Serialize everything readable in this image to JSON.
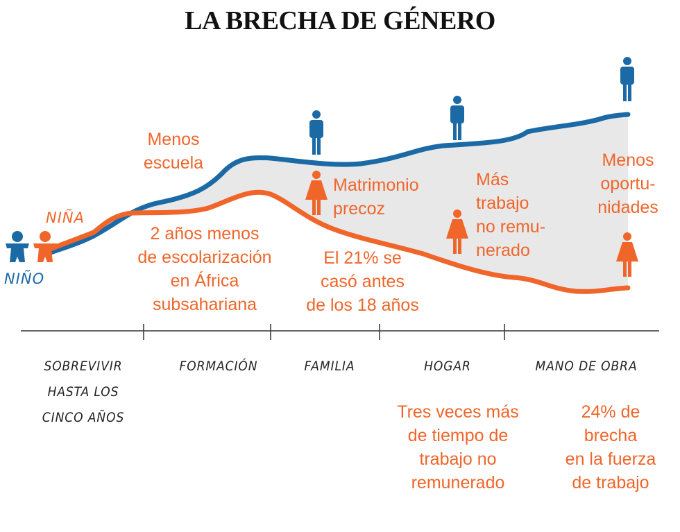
{
  "title": "LA BRECHA DE GÉNERO",
  "legend": {
    "girl": "NIÑA",
    "boy": "NIÑO"
  },
  "colors": {
    "boy": "#1b6aa6",
    "girl": "#f0652a",
    "gap": "#e8e8e8"
  },
  "annotations": {
    "less_school": "Menos\nescuela",
    "schooling": "2 años menos\nde escolarización\nen África\nsubsahariana",
    "child_marriage": "Matrimonio\nprecoz",
    "married_before_18": "El 21% se\ncasó antes\nde los 18 años",
    "unpaid_work": "Más\ntrabajo\nno remu-\nnerado",
    "fewer_opportunities": "Menos\noportu-\nnidades"
  },
  "stages": [
    "SOBREVIVIR\nHASTA LOS\nCINCO AÑOS",
    "FORMACIÓN",
    "FAMILIA",
    "HOGAR",
    "MANO DE OBRA"
  ],
  "stage_notes": {
    "home": "Tres veces más\nde tiempo de\ntrabajo no\nremunerado",
    "workforce": "24% de\nbrecha\nen la fuerza\nde trabajo"
  }
}
